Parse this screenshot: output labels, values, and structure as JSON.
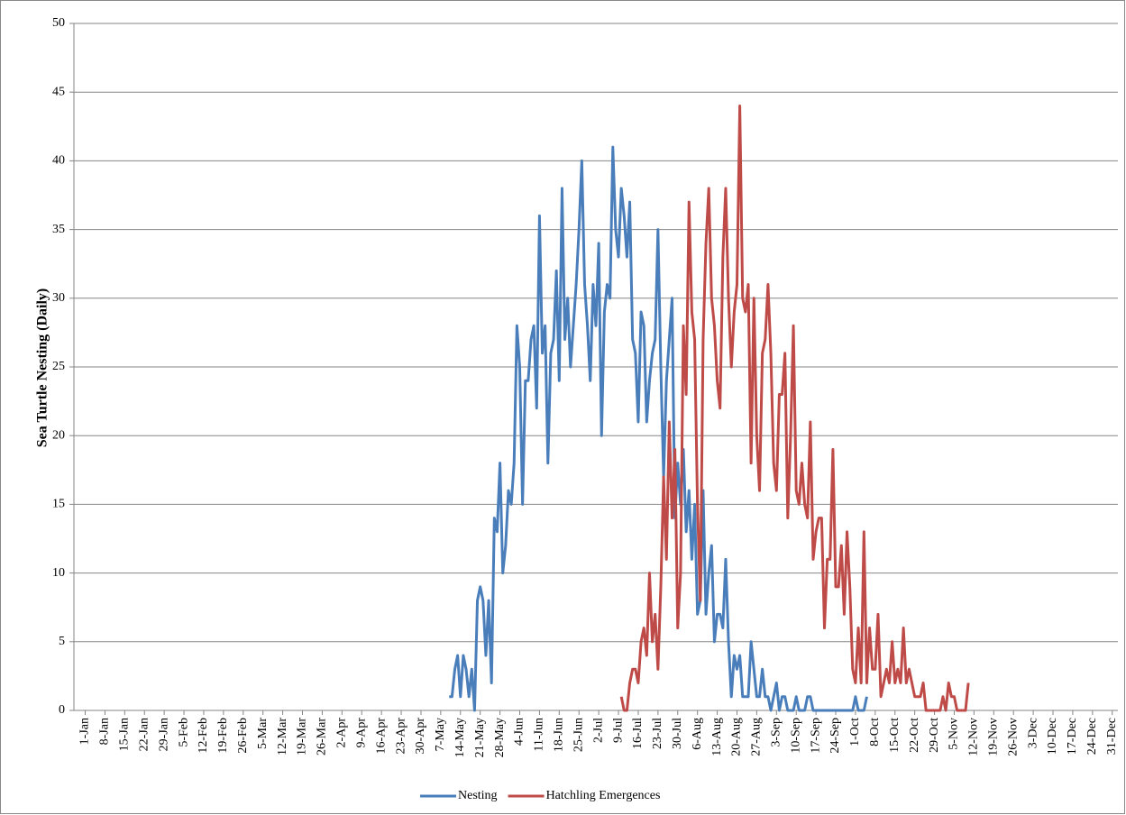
{
  "chart_data": {
    "type": "line",
    "ylabel": "Sea Turtle Nesting (Daily)",
    "xlim": [
      -4,
      366
    ],
    "ylim": [
      0,
      50
    ],
    "yticks": [
      0,
      5,
      10,
      15,
      20,
      25,
      30,
      35,
      40,
      45,
      50
    ],
    "grid": true,
    "legend": "bottom",
    "xticks": [
      {
        "value": 0,
        "label": "1-Jan"
      },
      {
        "value": 7,
        "label": "8-Jan"
      },
      {
        "value": 14,
        "label": "15-Jan"
      },
      {
        "value": 21,
        "label": "22-Jan"
      },
      {
        "value": 28,
        "label": "29-Jan"
      },
      {
        "value": 35,
        "label": "5-Feb"
      },
      {
        "value": 42,
        "label": "12-Feb"
      },
      {
        "value": 49,
        "label": "19-Feb"
      },
      {
        "value": 56,
        "label": "26-Feb"
      },
      {
        "value": 63,
        "label": "5-Mar"
      },
      {
        "value": 70,
        "label": "12-Mar"
      },
      {
        "value": 77,
        "label": "19-Mar"
      },
      {
        "value": 84,
        "label": "26-Mar"
      },
      {
        "value": 91,
        "label": "2-Apr"
      },
      {
        "value": 98,
        "label": "9-Apr"
      },
      {
        "value": 105,
        "label": "16-Apr"
      },
      {
        "value": 112,
        "label": "23-Apr"
      },
      {
        "value": 119,
        "label": "30-Apr"
      },
      {
        "value": 126,
        "label": "7-May"
      },
      {
        "value": 133,
        "label": "14-May"
      },
      {
        "value": 140,
        "label": "21-May"
      },
      {
        "value": 147,
        "label": "28-May"
      },
      {
        "value": 154,
        "label": "4-Jun"
      },
      {
        "value": 161,
        "label": "11-Jun"
      },
      {
        "value": 168,
        "label": "18-Jun"
      },
      {
        "value": 175,
        "label": "25-Jun"
      },
      {
        "value": 182,
        "label": "2-Jul"
      },
      {
        "value": 189,
        "label": "9-Jul"
      },
      {
        "value": 196,
        "label": "16-Jul"
      },
      {
        "value": 203,
        "label": "23-Jul"
      },
      {
        "value": 210,
        "label": "30-Jul"
      },
      {
        "value": 217,
        "label": "6-Aug"
      },
      {
        "value": 224,
        "label": "13-Aug"
      },
      {
        "value": 231,
        "label": "20-Aug"
      },
      {
        "value": 238,
        "label": "27-Aug"
      },
      {
        "value": 245,
        "label": "3-Sep"
      },
      {
        "value": 252,
        "label": "10-Sep"
      },
      {
        "value": 259,
        "label": "17-Sep"
      },
      {
        "value": 266,
        "label": "24-Sep"
      },
      {
        "value": 273,
        "label": "1-Oct"
      },
      {
        "value": 280,
        "label": "8-Oct"
      },
      {
        "value": 287,
        "label": "15-Oct"
      },
      {
        "value": 294,
        "label": "22-Oct"
      },
      {
        "value": 301,
        "label": "29-Oct"
      },
      {
        "value": 308,
        "label": "5-Nov"
      },
      {
        "value": 315,
        "label": "12-Nov"
      },
      {
        "value": 322,
        "label": "19-Nov"
      },
      {
        "value": 329,
        "label": "26-Nov"
      },
      {
        "value": 336,
        "label": "3-Dec"
      },
      {
        "value": 343,
        "label": "10-Dec"
      },
      {
        "value": 350,
        "label": "17-Dec"
      },
      {
        "value": 357,
        "label": "24-Dec"
      },
      {
        "value": 364,
        "label": "31-Dec"
      }
    ],
    "series": [
      {
        "name": "Nesting",
        "color": "#4a7ebb",
        "x": [
          129,
          130,
          131,
          132,
          133,
          134,
          135,
          136,
          137,
          138,
          139,
          140,
          141,
          142,
          143,
          144,
          145,
          146,
          147,
          148,
          149,
          150,
          151,
          152,
          153,
          154,
          155,
          156,
          157,
          158,
          159,
          160,
          161,
          162,
          163,
          164,
          165,
          166,
          167,
          168,
          169,
          170,
          171,
          172,
          173,
          174,
          175,
          176,
          177,
          178,
          179,
          180,
          181,
          182,
          183,
          184,
          185,
          186,
          187,
          188,
          189,
          190,
          191,
          192,
          193,
          194,
          195,
          196,
          197,
          198,
          199,
          200,
          201,
          202,
          203,
          204,
          205,
          206,
          207,
          208,
          209,
          210,
          211,
          212,
          213,
          214,
          215,
          216,
          217,
          218,
          219,
          220,
          221,
          222,
          223,
          224,
          225,
          226,
          227,
          228,
          229,
          230,
          231,
          232,
          233,
          234,
          235,
          236,
          237,
          238,
          239,
          240,
          241,
          242,
          243,
          244,
          245,
          246,
          247,
          248,
          249,
          250,
          251,
          252,
          253,
          254,
          255,
          256,
          257,
          258,
          259,
          260,
          261,
          262,
          263,
          264,
          265,
          266,
          267,
          268,
          269,
          270,
          271,
          272,
          273,
          274,
          275,
          276,
          277
        ],
        "values": [
          1,
          1,
          3,
          4,
          1,
          4,
          3,
          1,
          3,
          0,
          8,
          9,
          8,
          4,
          8,
          2,
          14,
          13,
          18,
          10,
          12,
          16,
          15,
          18,
          28,
          25,
          15,
          24,
          24,
          27,
          28,
          22,
          36,
          26,
          28,
          18,
          26,
          27,
          32,
          24,
          38,
          27,
          30,
          25,
          28,
          31,
          35,
          40,
          31,
          28,
          24,
          31,
          28,
          34,
          20,
          29,
          31,
          30,
          41,
          35,
          33,
          38,
          36,
          33,
          37,
          27,
          26,
          21,
          29,
          28,
          21,
          24,
          26,
          27,
          35,
          25,
          17,
          24,
          27,
          30,
          14,
          18,
          15,
          19,
          13,
          16,
          11,
          15,
          7,
          8,
          16,
          7,
          10,
          12,
          5,
          7,
          7,
          6,
          11,
          5,
          1,
          4,
          3,
          4,
          1,
          1,
          1,
          5,
          3,
          1,
          1,
          3,
          1,
          1,
          0,
          1,
          2,
          0,
          1,
          1,
          0,
          0,
          0,
          1,
          0,
          0,
          0,
          1,
          1,
          0,
          0,
          0,
          0,
          0,
          0,
          0,
          0,
          0,
          0,
          0,
          0,
          0,
          0,
          0,
          1,
          0,
          0,
          0,
          1
        ]
      },
      {
        "name": "Hatchling Emergences",
        "color": "#be4b48",
        "x": [
          190,
          191,
          192,
          193,
          194,
          195,
          196,
          197,
          198,
          199,
          200,
          201,
          202,
          203,
          204,
          205,
          206,
          207,
          208,
          209,
          210,
          211,
          212,
          213,
          214,
          215,
          216,
          217,
          218,
          219,
          220,
          221,
          222,
          223,
          224,
          225,
          226,
          227,
          228,
          229,
          230,
          231,
          232,
          233,
          234,
          235,
          236,
          237,
          238,
          239,
          240,
          241,
          242,
          243,
          244,
          245,
          246,
          247,
          248,
          249,
          250,
          251,
          252,
          253,
          254,
          255,
          256,
          257,
          258,
          259,
          260,
          261,
          262,
          263,
          264,
          265,
          266,
          267,
          268,
          269,
          270,
          271,
          272,
          273,
          274,
          275,
          276,
          277,
          278,
          279,
          280,
          281,
          282,
          283,
          284,
          285,
          286,
          287,
          288,
          289,
          290,
          291,
          292,
          293,
          294,
          295,
          296,
          297,
          298,
          299,
          300,
          301,
          302,
          303,
          304,
          305,
          306,
          307,
          308,
          309,
          310,
          311,
          312,
          313
        ],
        "values": [
          1,
          0,
          0,
          2,
          3,
          3,
          2,
          5,
          6,
          4,
          10,
          5,
          7,
          3,
          9,
          17,
          11,
          21,
          14,
          19,
          6,
          10,
          28,
          23,
          37,
          29,
          27,
          15,
          8,
          27,
          34,
          38,
          30,
          28,
          24,
          22,
          33,
          38,
          30,
          25,
          29,
          31,
          44,
          30,
          29,
          31,
          18,
          30,
          20,
          16,
          26,
          27,
          31,
          26,
          18,
          16,
          23,
          23,
          26,
          14,
          20,
          28,
          16,
          15,
          18,
          15,
          14,
          21,
          11,
          13,
          14,
          14,
          6,
          11,
          11,
          19,
          9,
          9,
          12,
          7,
          13,
          9,
          3,
          2,
          6,
          2,
          13,
          2,
          6,
          3,
          3,
          7,
          1,
          2,
          3,
          2,
          5,
          2,
          3,
          2,
          6,
          2,
          3,
          2,
          1,
          1,
          1,
          2,
          0,
          0,
          0,
          0,
          0,
          0,
          1,
          0,
          2,
          1,
          1,
          0,
          0,
          0,
          0,
          2
        ]
      }
    ]
  }
}
